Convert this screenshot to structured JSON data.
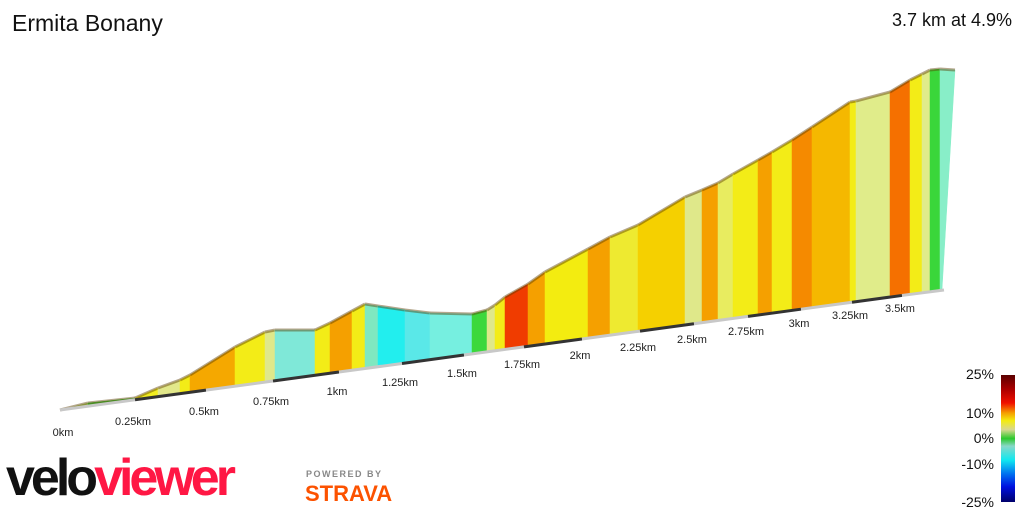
{
  "title": "Ermita Bonany",
  "summary": "3.7 km at 4.9%",
  "distance_ticks": [
    "0km",
    "0.25km",
    "0.5km",
    "0.75km",
    "1km",
    "1.25km",
    "1.5km",
    "1.75km",
    "2km",
    "2.25km",
    "2.5km",
    "2.75km",
    "3km",
    "3.25km",
    "3.5km"
  ],
  "legend": {
    "labels": [
      "25%",
      "10%",
      "0%",
      "-10%",
      "-25%"
    ]
  },
  "branding": {
    "logo_dark": "velo",
    "logo_red": "viewer",
    "powered_by": "POWERED BY",
    "strava": "STRAVA"
  }
}
